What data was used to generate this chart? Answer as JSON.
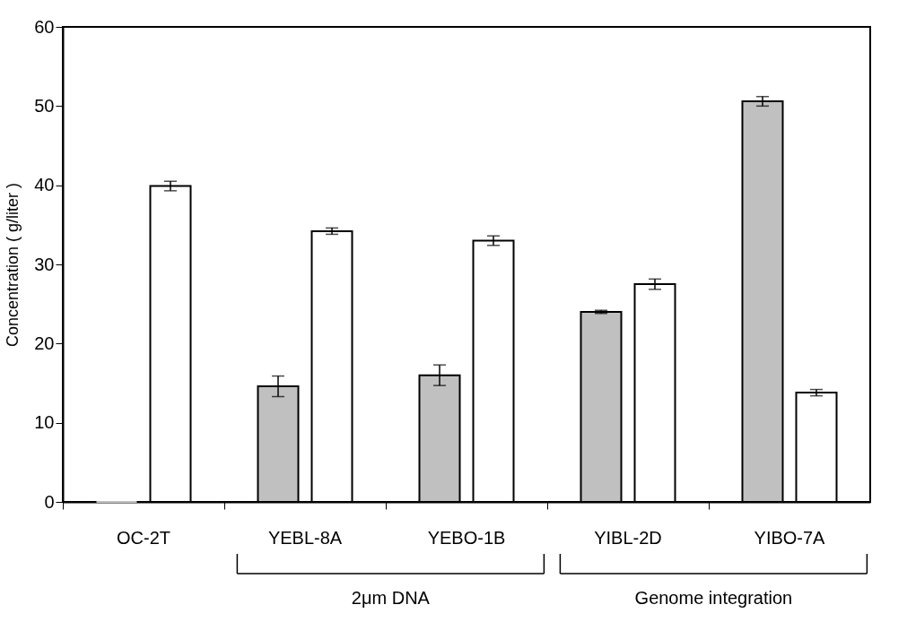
{
  "chart_data": {
    "type": "bar",
    "ylabel": "Concentration ( g/liter )",
    "categories": [
      "OC-2T",
      "YEBL-8A",
      "YEBO-1B",
      "YIBL-2D",
      "YIBO-7A"
    ],
    "series": [
      {
        "color": "#c0c0c0",
        "values": [
          0,
          14.6,
          16.0,
          24.0,
          50.6
        ],
        "errors": [
          null,
          1.3,
          1.3,
          0.2,
          0.6
        ]
      },
      {
        "color": "#ffffff",
        "values": [
          39.9,
          34.2,
          33.0,
          27.5,
          13.8
        ],
        "errors": [
          0.6,
          0.4,
          0.6,
          0.65,
          0.4
        ]
      }
    ],
    "ylim": [
      0,
      60
    ],
    "yticks": [
      0,
      10,
      20,
      30,
      40,
      50,
      60
    ],
    "annotations": [
      "2μm DNA",
      "Genome integration"
    ]
  }
}
